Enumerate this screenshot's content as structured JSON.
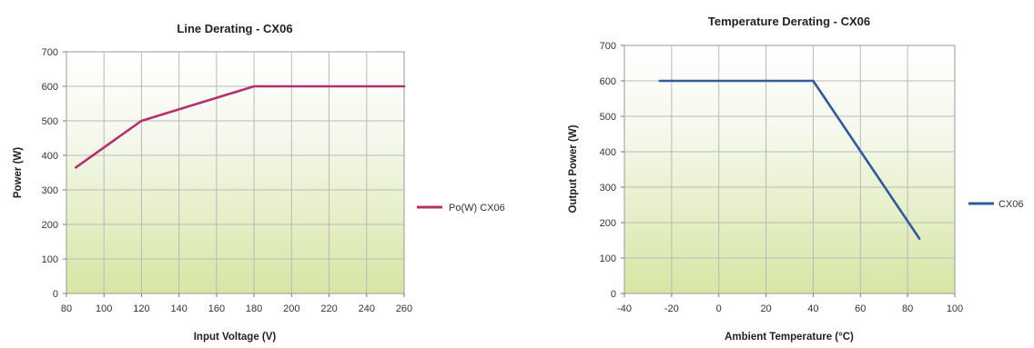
{
  "chart_data": [
    {
      "type": "line",
      "title": "Line Derating - CX06",
      "xlabel": "Input Voltage (V)",
      "ylabel": "Power (W)",
      "xlim": [
        80,
        260
      ],
      "ylim": [
        0,
        700
      ],
      "x_ticks": [
        "80",
        "100",
        "120",
        "140",
        "160",
        "180",
        "200",
        "220",
        "240",
        "260"
      ],
      "y_ticks": [
        "0",
        "100",
        "200",
        "300",
        "400",
        "500",
        "600",
        "700"
      ],
      "grid": true,
      "legend": "right",
      "series": [
        {
          "name": "Po(W) CX06",
          "color": "#b5306b",
          "x": [
            85,
            120,
            180,
            260
          ],
          "y": [
            365,
            500,
            600,
            600
          ]
        }
      ]
    },
    {
      "type": "line",
      "title": "Temperature Derating - CX06",
      "xlabel": "Ambient Temperature (°C)",
      "ylabel": "Output Power (W)",
      "xlim": [
        -40,
        100
      ],
      "ylim": [
        0,
        700
      ],
      "x_ticks": [
        "-40",
        "-20",
        "0",
        "20",
        "40",
        "60",
        "80",
        "100"
      ],
      "y_ticks": [
        "0",
        "100",
        "200",
        "300",
        "400",
        "500",
        "600",
        "700"
      ],
      "grid": true,
      "legend": "right",
      "series": [
        {
          "name": "CX06",
          "color": "#2f5a9e",
          "x": [
            -25,
            40,
            85
          ],
          "y": [
            600,
            600,
            155
          ]
        }
      ]
    }
  ]
}
